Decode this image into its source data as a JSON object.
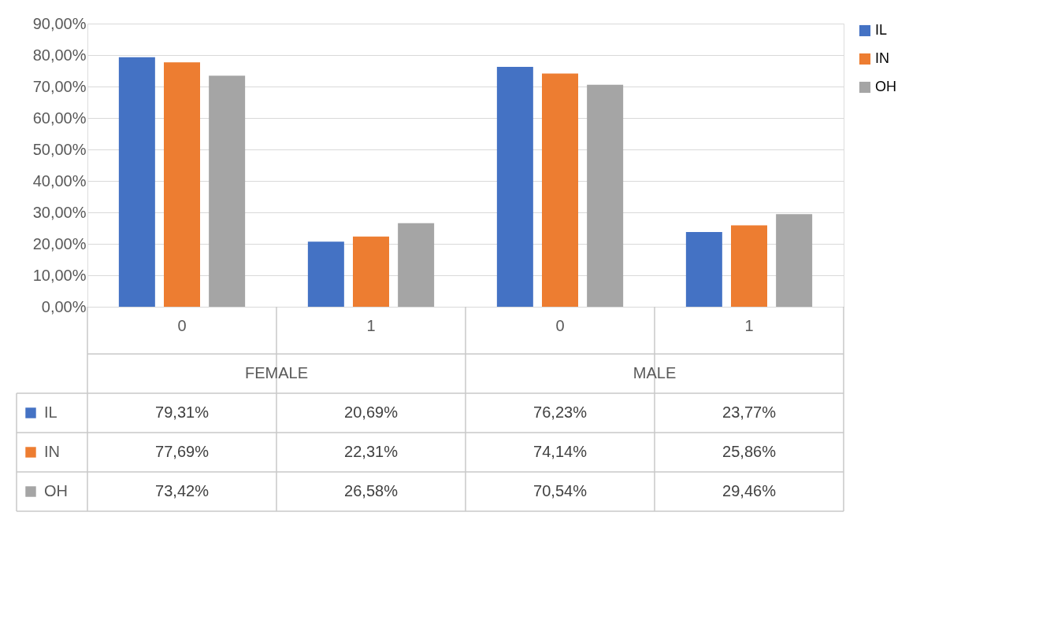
{
  "chart_data": {
    "type": "bar",
    "categories": [
      "0",
      "1",
      "0",
      "1"
    ],
    "annotations": [
      "FEMALE",
      "MALE"
    ],
    "series": [
      {
        "name": "IL",
        "color": "#4472c4",
        "values": [
          79.31,
          20.69,
          76.23,
          23.77
        ],
        "value_labels": [
          "79,31%",
          "20,69%",
          "76,23%",
          "23,77%"
        ]
      },
      {
        "name": "IN",
        "color": "#ed7d31",
        "values": [
          77.69,
          22.31,
          74.14,
          25.86
        ],
        "value_labels": [
          "77,69%",
          "22,31%",
          "74,14%",
          "25,86%"
        ]
      },
      {
        "name": "OH",
        "color": "#a5a5a5",
        "values": [
          73.42,
          26.58,
          70.54,
          29.46
        ],
        "value_labels": [
          "73,42%",
          "26,58%",
          "70,54%",
          "29,46%"
        ]
      }
    ],
    "ylim": [
      0,
      90
    ],
    "yticks": [
      {
        "value": 0,
        "label": "0,00%"
      },
      {
        "value": 10,
        "label": "10,00%"
      },
      {
        "value": 20,
        "label": "20,00%"
      },
      {
        "value": 30,
        "label": "30,00%"
      },
      {
        "value": 40,
        "label": "40,00%"
      },
      {
        "value": 50,
        "label": "50,00%"
      },
      {
        "value": 60,
        "label": "60,00%"
      },
      {
        "value": 70,
        "label": "70,00%"
      },
      {
        "value": 80,
        "label": "80,00%"
      },
      {
        "value": 90,
        "label": "90,00%"
      }
    ],
    "grid": "y",
    "legend": "right"
  }
}
